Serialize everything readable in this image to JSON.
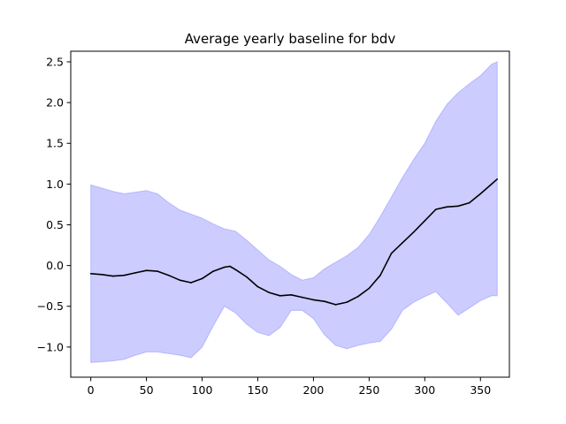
{
  "chart_data": {
    "type": "line",
    "title": "Average yearly baseline for bdv",
    "xlabel": "",
    "ylabel": "",
    "xlim": [
      -18,
      376
    ],
    "ylim": [
      -1.37,
      2.63
    ],
    "x_ticks": [
      0,
      50,
      100,
      150,
      200,
      250,
      300,
      350
    ],
    "y_ticks": [
      -1.0,
      -0.5,
      0.0,
      0.5,
      1.0,
      1.5,
      2.0,
      2.5
    ],
    "y_tick_labels": [
      "−1.0",
      "−0.5",
      "0.0",
      "0.5",
      "1.0",
      "1.5",
      "2.0",
      "2.5"
    ],
    "grid": false,
    "series": [
      {
        "style": "line",
        "color": "#000000",
        "x": [
          0,
          10,
          20,
          30,
          40,
          50,
          60,
          70,
          80,
          90,
          100,
          110,
          120,
          125,
          130,
          140,
          150,
          160,
          170,
          180,
          190,
          200,
          210,
          220,
          230,
          240,
          250,
          260,
          270,
          280,
          290,
          300,
          310,
          320,
          330,
          340,
          350,
          360,
          365
        ],
        "values": [
          -0.1,
          -0.11,
          -0.13,
          -0.12,
          -0.09,
          -0.06,
          -0.07,
          -0.12,
          -0.18,
          -0.21,
          -0.16,
          -0.07,
          -0.02,
          -0.01,
          -0.05,
          -0.14,
          -0.26,
          -0.33,
          -0.37,
          -0.36,
          -0.39,
          -0.42,
          -0.44,
          -0.48,
          -0.45,
          -0.38,
          -0.28,
          -0.12,
          0.15,
          0.28,
          0.41,
          0.55,
          0.69,
          0.72,
          0.73,
          0.77,
          0.88,
          1.0,
          1.06
        ]
      },
      {
        "style": "band",
        "color": "#ccccff",
        "edge_color": "#9999ff",
        "x": [
          0,
          10,
          20,
          30,
          40,
          50,
          60,
          70,
          80,
          90,
          100,
          110,
          120,
          130,
          140,
          150,
          160,
          170,
          180,
          190,
          200,
          210,
          220,
          230,
          240,
          250,
          260,
          270,
          280,
          290,
          300,
          310,
          320,
          330,
          340,
          350,
          360,
          365
        ],
        "upper": [
          0.99,
          0.95,
          0.91,
          0.88,
          0.9,
          0.92,
          0.88,
          0.77,
          0.68,
          0.63,
          0.58,
          0.51,
          0.45,
          0.42,
          0.31,
          0.19,
          0.07,
          -0.01,
          -0.11,
          -0.18,
          -0.15,
          -0.04,
          0.04,
          0.12,
          0.22,
          0.38,
          0.6,
          0.84,
          1.08,
          1.3,
          1.5,
          1.77,
          1.98,
          2.12,
          2.23,
          2.33,
          2.47,
          2.5
        ],
        "lower": [
          -1.19,
          -1.18,
          -1.17,
          -1.15,
          -1.1,
          -1.06,
          -1.06,
          -1.08,
          -1.1,
          -1.13,
          -1.0,
          -0.74,
          -0.5,
          -0.58,
          -0.72,
          -0.82,
          -0.86,
          -0.76,
          -0.55,
          -0.55,
          -0.65,
          -0.85,
          -0.98,
          -1.02,
          -0.98,
          -0.95,
          -0.93,
          -0.78,
          -0.55,
          -0.45,
          -0.38,
          -0.32,
          -0.46,
          -0.61,
          -0.52,
          -0.43,
          -0.37,
          -0.37
        ]
      }
    ]
  }
}
